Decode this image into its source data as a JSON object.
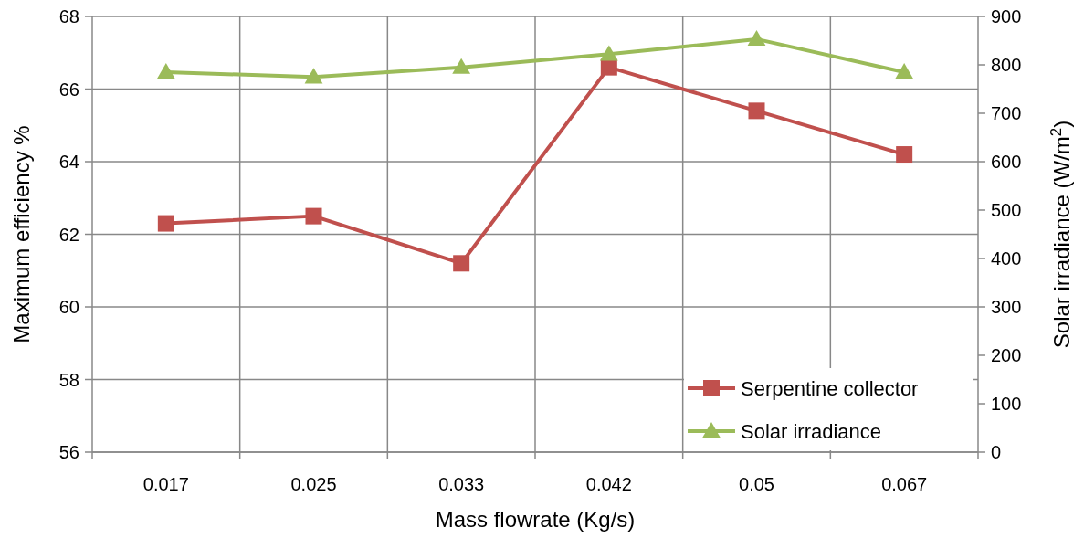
{
  "chart_data": {
    "type": "line",
    "xlabel": "Mass flowrate (Kg/s)",
    "ylabel": "Maximum efficiency %",
    "y2label": "Solar irradiance (W/m$^{2}$)",
    "categories": [
      "0.017",
      "0.025",
      "0.033",
      "0.042",
      "0.05",
      "0.067"
    ],
    "series": [
      {
        "name": "Serpentine collector",
        "color": "#c0504d",
        "values": [
          62.3,
          62.5,
          61.2,
          66.6,
          65.4,
          64.2
        ],
        "marker": "square"
      },
      {
        "name": "Solar irradiance",
        "color": "#9bbb59",
        "values": [
          785,
          775,
          795,
          822,
          853,
          785
        ],
        "axis": "y2",
        "marker": "triangle"
      }
    ],
    "ylim": [
      56,
      68
    ],
    "yticks": [
      56,
      58,
      60,
      62,
      64,
      66,
      68
    ],
    "y2lim": [
      0,
      900
    ],
    "y2ticks": [
      0,
      100,
      200,
      300,
      400,
      500,
      600,
      700,
      800,
      900
    ],
    "grid": true,
    "legend": "bottom right"
  }
}
